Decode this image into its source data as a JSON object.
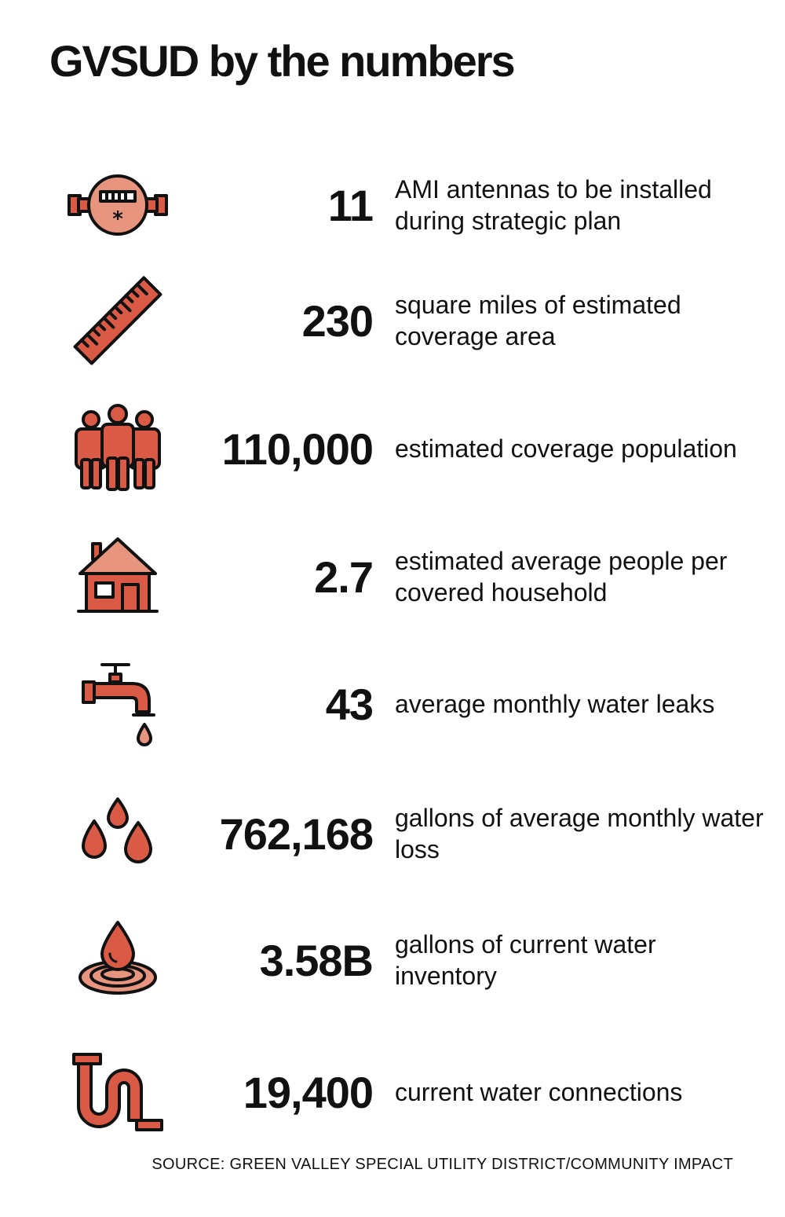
{
  "title": "GVSUD by the numbers",
  "colors": {
    "accent": "#d95a45",
    "accent_light": "#e8957f",
    "outline": "#111111"
  },
  "items": [
    {
      "icon": "water-meter-icon",
      "value": "11",
      "label": "AMI antennas to be installed during strategic plan"
    },
    {
      "icon": "ruler-icon",
      "value": "230",
      "label": "square miles of estimated coverage area"
    },
    {
      "icon": "people-icon",
      "value": "110,000",
      "label": "estimated coverage population"
    },
    {
      "icon": "house-icon",
      "value": "2.7",
      "label": "estimated average people per covered household"
    },
    {
      "icon": "faucet-icon",
      "value": "43",
      "label": "average monthly water leaks"
    },
    {
      "icon": "water-drops-icon",
      "value": "762,168",
      "label": "gallons of average monthly water loss"
    },
    {
      "icon": "water-ripple-icon",
      "value": "3.58B",
      "label": "gallons of current water inventory"
    },
    {
      "icon": "pipe-icon",
      "value": "19,400",
      "label": "current water connections"
    }
  ],
  "source": "SOURCE: GREEN VALLEY SPECIAL UTILITY DISTRICT/COMMUNITY IMPACT"
}
